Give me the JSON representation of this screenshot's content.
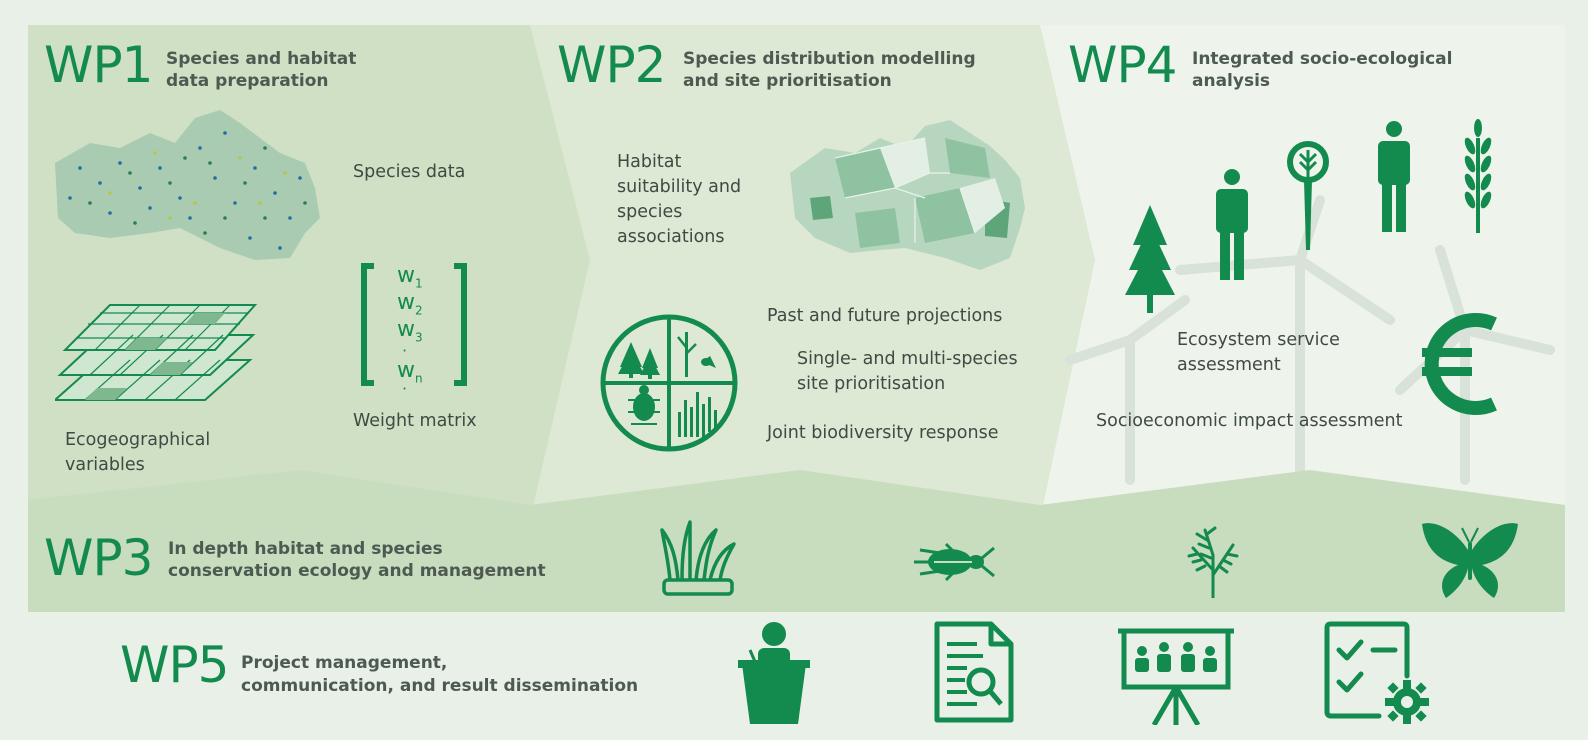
{
  "colors": {
    "accent": "#138a4e",
    "dark_band": "#c8dcbe",
    "text": "#3f4a44"
  },
  "wp1": {
    "label": "WP1",
    "title_line1": "Species and habitat",
    "title_line2": "data preparation",
    "species_data": "Species data",
    "eco_line1": "Ecogeographical",
    "eco_line2": "variables",
    "weight_matrix": "Weight matrix",
    "matrix": {
      "w1": "w",
      "s1": "1",
      "w2": "w",
      "s2": "2",
      "w3": "w",
      "s3": "3",
      "dots": "· · ·",
      "wn": "w",
      "sn": "n"
    }
  },
  "wp2": {
    "label": "WP2",
    "title_line1": "Species distribution modelling",
    "title_line2": "and site prioritisation",
    "habitat_line1": "Habitat",
    "habitat_line2": "suitability and",
    "habitat_line3": "species",
    "habitat_line4": "associations",
    "past_future": "Past and future projections",
    "single_line1": "Single- and multi-species",
    "single_line2": "site prioritisation",
    "joint": "Joint biodiversity response"
  },
  "wp4": {
    "label": "WP4",
    "title_line1": "Integrated socio-ecological",
    "title_line2": "analysis",
    "eco_line1": "Ecosystem service",
    "eco_line2": "assessment",
    "socio": "Socioeconomic impact assessment"
  },
  "wp3": {
    "label": "WP3",
    "title_line1": "In depth habitat and species",
    "title_line2": "conservation ecology and management"
  },
  "wp5": {
    "label": "WP5",
    "title_line1": "Project management,",
    "title_line2": "communication, and result dissemination"
  },
  "icons": [
    "grass-icon",
    "beetle-icon",
    "plant-sprig-icon",
    "butterfly-icon",
    "speaker-podium-icon",
    "document-search-icon",
    "presentation-board-icon",
    "checklist-gear-icon",
    "tree-icon",
    "person-icon",
    "round-tree-icon",
    "wheat-icon",
    "euro-icon",
    "wind-turbine-icon",
    "latvia-map-icon",
    "habitat-circle-icon",
    "grid-layers-icon"
  ]
}
